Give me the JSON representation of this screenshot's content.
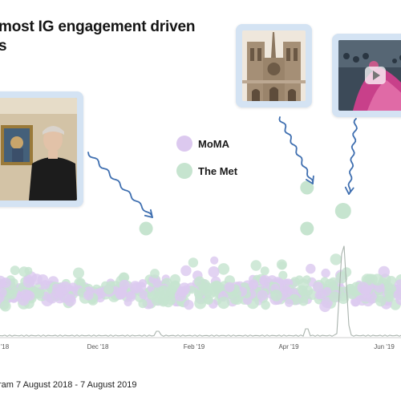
{
  "title_line1": "most IG engagement driven",
  "title_line2": "s",
  "source": "ram 7 August 2018 - 7 August 2019",
  "colors": {
    "moma": "#dcc9ef",
    "met": "#c6e4cf",
    "arrow": "#3f6fb0",
    "card": "#d4e3f3",
    "line": "#a9b3ad"
  },
  "icons": [
    "curved-arrow-icon",
    "play-icon"
  ],
  "chart_data": {
    "type": "scatter",
    "x_tick_labels": [
      "'18",
      "Dec '18",
      "Feb '19",
      "Apr '19",
      "Jun '19"
    ],
    "legend": [
      {
        "name": "MoMA",
        "color": "#dcc9ef"
      },
      {
        "name": "The Met",
        "color": "#c6e4cf"
      }
    ],
    "legend_placement": "center",
    "grid": false,
    "highlighted_posts": [
      {
        "series": "The Met",
        "date": "2019-01-07",
        "engagement_level": "high"
      },
      {
        "series": "The Met",
        "date": "2019-04-15",
        "engagement_level": "high"
      },
      {
        "series": "The Met",
        "date": "2019-05-07",
        "engagement_level": "highest"
      },
      {
        "series": "The Met",
        "date": "2019-04-15",
        "engagement_level": "high"
      }
    ]
  }
}
